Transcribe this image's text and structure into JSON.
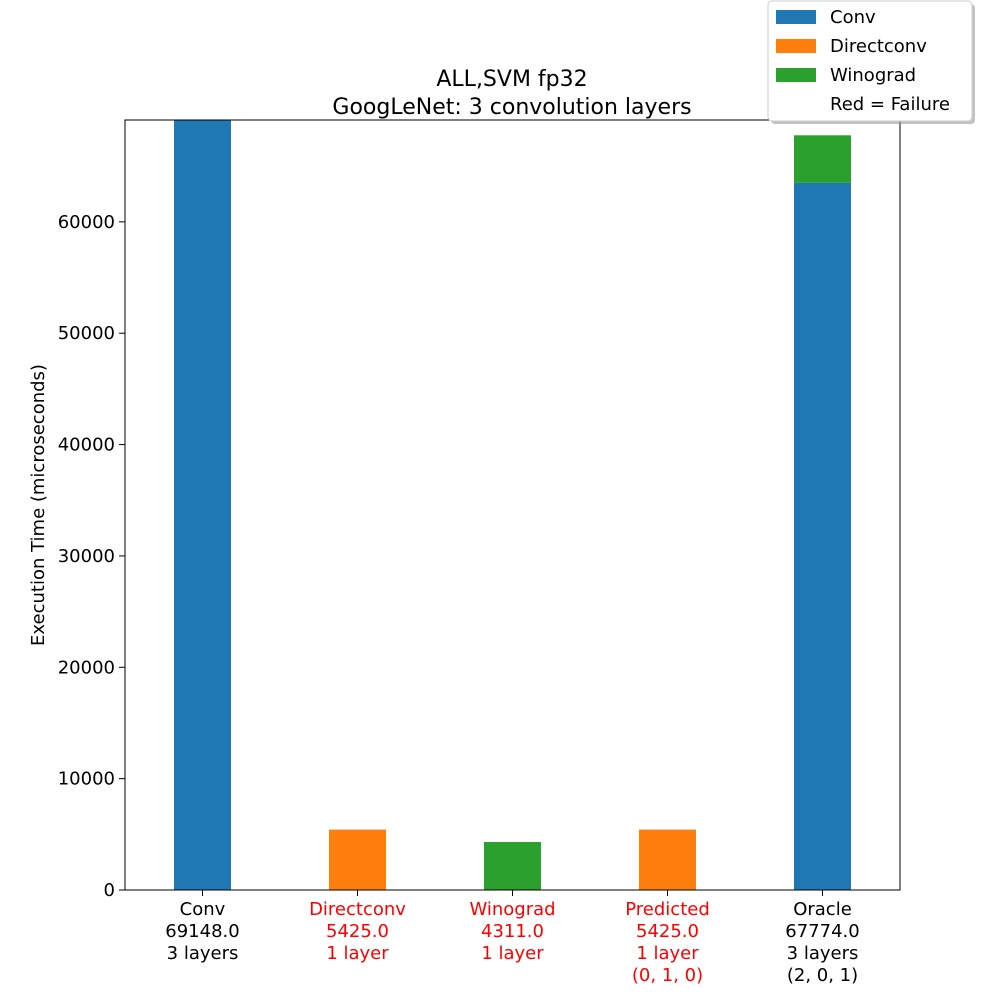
{
  "chart_data": {
    "type": "bar",
    "stacked": true,
    "title": [
      "ALL,SVM fp32",
      "GoogLeNet: 3 convolution layers"
    ],
    "ylabel": "Execution Time (microseconds)",
    "xlabel": "",
    "ylim": [
      0,
      69148
    ],
    "yticks": [
      0,
      10000,
      20000,
      30000,
      40000,
      50000,
      60000
    ],
    "grid": false,
    "legend_position": "top-right",
    "legend": [
      {
        "label": "Conv",
        "color": "#1f77b4"
      },
      {
        "label": "Directconv",
        "color": "#ff7f0e"
      },
      {
        "label": "Winograd",
        "color": "#2ca02c"
      },
      {
        "label": "Red = Failure",
        "color": ""
      }
    ],
    "categories": [
      {
        "lines": [
          "Conv",
          "69148.0",
          "3 layers"
        ],
        "failure": false
      },
      {
        "lines": [
          "Directconv",
          "5425.0",
          "1 layer"
        ],
        "failure": true
      },
      {
        "lines": [
          "Winograd",
          "4311.0",
          "1 layer"
        ],
        "failure": true
      },
      {
        "lines": [
          "Predicted",
          "5425.0",
          "1 layer",
          "(0, 1, 0)"
        ],
        "failure": true
      },
      {
        "lines": [
          "Oracle",
          "67774.0",
          "3 layers",
          "(2, 0, 1)"
        ],
        "failure": false
      }
    ],
    "series": [
      {
        "name": "Conv",
        "color": "#1f77b4",
        "values": [
          69148,
          0,
          0,
          0,
          63500
        ]
      },
      {
        "name": "Directconv",
        "color": "#ff7f0e",
        "values": [
          0,
          5425,
          0,
          5425,
          0
        ]
      },
      {
        "name": "Winograd",
        "color": "#2ca02c",
        "values": [
          0,
          0,
          4311,
          0,
          4274
        ]
      }
    ],
    "failure_color": "#ff0000"
  }
}
